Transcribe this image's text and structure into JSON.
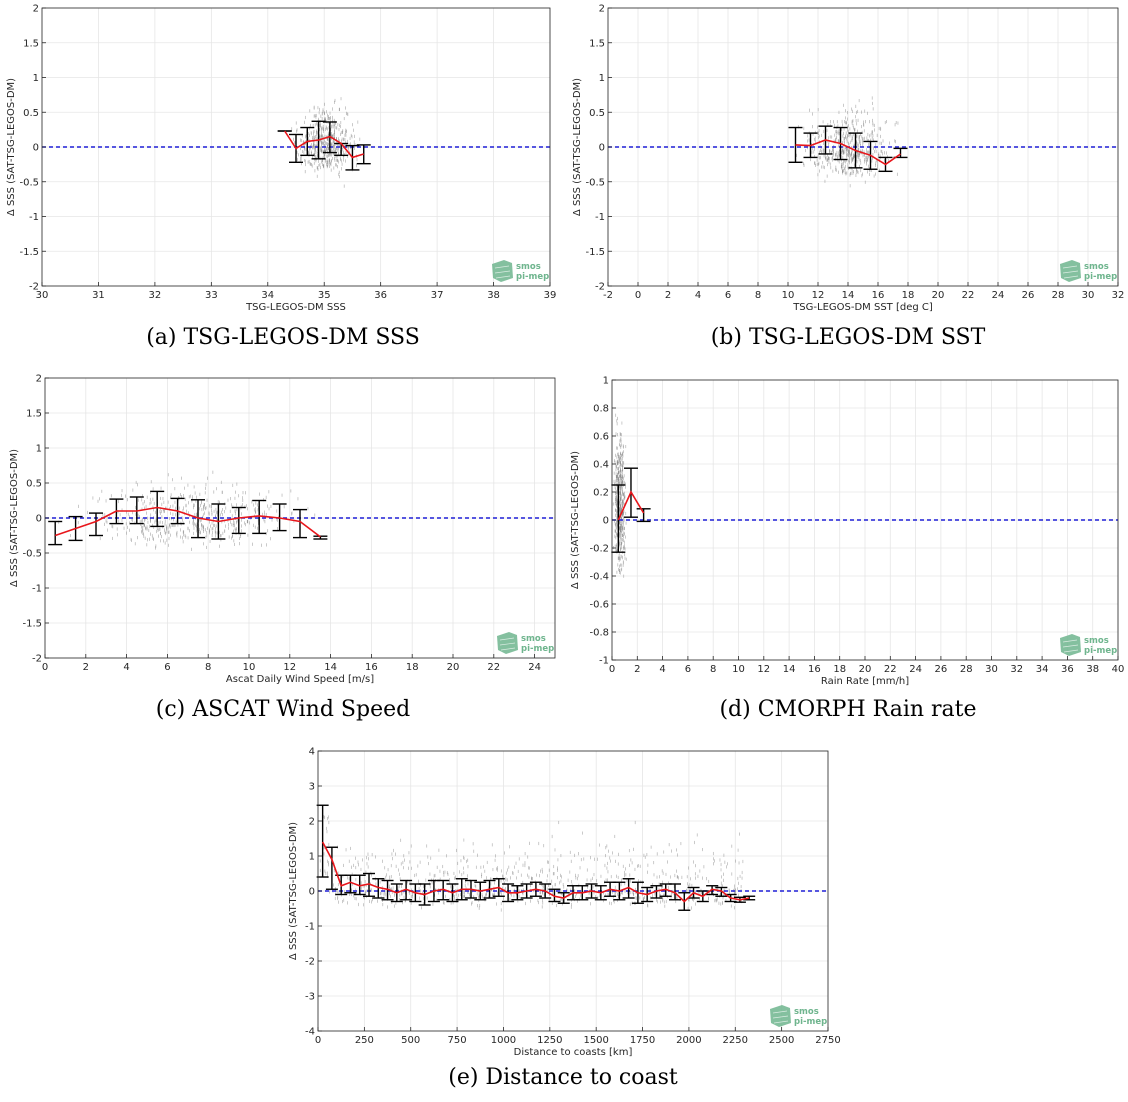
{
  "logo": {
    "line1": "smos",
    "line2": "pi-mep",
    "color": "#6fb58e"
  },
  "colors": {
    "mean_line": "#e8161b",
    "error_bar": "#000000",
    "zero_line": "#1f1fd6",
    "scatter": "#8a8a8a",
    "grid": "#e6e6e6"
  },
  "chart_data": [
    {
      "id": "a",
      "type": "scatter",
      "caption": "(a) TSG-LEGOS-DM SSS",
      "xlabel": "TSG-LEGOS-DM SSS",
      "ylabel": "Δ SSS (SAT-TSG-LEGOS-DM)",
      "xlim": [
        30,
        39
      ],
      "ylim": [
        -2,
        2
      ],
      "xticks": [
        30,
        31,
        32,
        33,
        34,
        35,
        36,
        37,
        38,
        39
      ],
      "yticks": [
        -2,
        -1.5,
        -1,
        -0.5,
        0,
        0.5,
        1,
        1.5,
        2
      ],
      "grid": true,
      "reference_line": 0,
      "scatter_cloud": {
        "x": [
          34.35,
          35.75
        ],
        "y": [
          -0.65,
          0.9
        ]
      },
      "mean": {
        "x": [
          34.3,
          34.5,
          34.7,
          34.9,
          35.1,
          35.3,
          35.5,
          35.7
        ],
        "y": [
          0.23,
          -0.02,
          0.08,
          0.1,
          0.15,
          0.05,
          -0.15,
          -0.1
        ]
      },
      "errorbars": [
        {
          "x": 34.3,
          "low": 0.23,
          "high": 0.23
        },
        {
          "x": 34.5,
          "low": -0.22,
          "high": 0.18
        },
        {
          "x": 34.7,
          "low": -0.12,
          "high": 0.28
        },
        {
          "x": 34.9,
          "low": -0.17,
          "high": 0.37
        },
        {
          "x": 35.1,
          "low": -0.08,
          "high": 0.36
        },
        {
          "x": 35.3,
          "low": -0.12,
          "high": 0.05
        },
        {
          "x": 35.5,
          "low": -0.33,
          "high": 0.02
        },
        {
          "x": 35.7,
          "low": -0.24,
          "high": 0.03
        }
      ]
    },
    {
      "id": "b",
      "type": "scatter",
      "caption": "(b) TSG-LEGOS-DM SST",
      "xlabel": "TSG-LEGOS-DM SST [deg C]",
      "ylabel": "Δ SSS (SAT-TSG-LEGOS-DM)",
      "xlim": [
        -2,
        32
      ],
      "ylim": [
        -2,
        2
      ],
      "xticks": [
        -2,
        0,
        2,
        4,
        6,
        8,
        10,
        12,
        14,
        16,
        18,
        20,
        22,
        24,
        26,
        28,
        30,
        32
      ],
      "yticks": [
        -2,
        -1.5,
        -1,
        -0.5,
        0,
        0.5,
        1,
        1.5,
        2
      ],
      "grid": true,
      "reference_line": 0,
      "scatter_cloud": {
        "x": [
          10.3,
          17.8
        ],
        "y": [
          -0.65,
          0.9
        ]
      },
      "mean": {
        "x": [
          10.5,
          11.5,
          12.5,
          13.5,
          14.5,
          15.5,
          16.5,
          17.5
        ],
        "y": [
          0.03,
          0.02,
          0.1,
          0.05,
          -0.05,
          -0.12,
          -0.25,
          -0.1
        ]
      },
      "errorbars": [
        {
          "x": 10.5,
          "low": -0.22,
          "high": 0.28
        },
        {
          "x": 11.5,
          "low": -0.15,
          "high": 0.2
        },
        {
          "x": 12.5,
          "low": -0.1,
          "high": 0.3
        },
        {
          "x": 13.5,
          "low": -0.18,
          "high": 0.28
        },
        {
          "x": 14.5,
          "low": -0.3,
          "high": 0.2
        },
        {
          "x": 15.5,
          "low": -0.32,
          "high": 0.08
        },
        {
          "x": 16.5,
          "low": -0.35,
          "high": -0.15
        },
        {
          "x": 17.5,
          "low": -0.15,
          "high": -0.02
        }
      ]
    },
    {
      "id": "c",
      "type": "scatter",
      "caption": "(c) ASCAT Wind Speed",
      "xlabel": "Ascat Daily Wind Speed [m/s]",
      "ylabel": "Δ SSS (SAT-TSG-LEGOS-DM)",
      "xlim": [
        0,
        25
      ],
      "ylim": [
        -2,
        2
      ],
      "xticks": [
        0,
        2,
        4,
        6,
        8,
        10,
        12,
        14,
        16,
        18,
        20,
        22,
        24
      ],
      "yticks": [
        -2,
        -1.5,
        -1,
        -0.5,
        0,
        0.5,
        1,
        1.5,
        2
      ],
      "grid": true,
      "reference_line": 0,
      "scatter_cloud": {
        "x": [
          0.3,
          13.7
        ],
        "y": [
          -0.6,
          0.9
        ]
      },
      "mean": {
        "x": [
          0.5,
          1.5,
          2.5,
          3.5,
          4.5,
          5.5,
          6.5,
          7.5,
          8.5,
          9.5,
          10.5,
          11.5,
          12.5,
          13.5
        ],
        "y": [
          -0.25,
          -0.15,
          -0.05,
          0.1,
          0.1,
          0.15,
          0.1,
          0.0,
          -0.05,
          0.0,
          0.03,
          0.0,
          -0.05,
          -0.27
        ]
      },
      "errorbars": [
        {
          "x": 0.5,
          "low": -0.38,
          "high": -0.05
        },
        {
          "x": 1.5,
          "low": -0.32,
          "high": 0.02
        },
        {
          "x": 2.5,
          "low": -0.25,
          "high": 0.07
        },
        {
          "x": 3.5,
          "low": -0.08,
          "high": 0.27
        },
        {
          "x": 4.5,
          "low": -0.08,
          "high": 0.3
        },
        {
          "x": 5.5,
          "low": -0.12,
          "high": 0.38
        },
        {
          "x": 6.5,
          "low": -0.08,
          "high": 0.28
        },
        {
          "x": 7.5,
          "low": -0.28,
          "high": 0.26
        },
        {
          "x": 8.5,
          "low": -0.3,
          "high": 0.2
        },
        {
          "x": 9.5,
          "low": -0.22,
          "high": 0.15
        },
        {
          "x": 10.5,
          "low": -0.22,
          "high": 0.25
        },
        {
          "x": 11.5,
          "low": -0.18,
          "high": 0.2
        },
        {
          "x": 12.5,
          "low": -0.28,
          "high": 0.12
        },
        {
          "x": 13.5,
          "low": -0.3,
          "high": -0.26
        }
      ]
    },
    {
      "id": "d",
      "type": "scatter",
      "caption": "(d) CMORPH Rain rate",
      "xlabel": "Rain Rate [mm/h]",
      "ylabel": "Δ SSS (SAT-TSG-LEGOS-DM)",
      "xlim": [
        0,
        40
      ],
      "ylim": [
        -1,
        1
      ],
      "xticks": [
        0,
        2,
        4,
        6,
        8,
        10,
        12,
        14,
        16,
        18,
        20,
        22,
        24,
        26,
        28,
        30,
        32,
        34,
        36,
        38,
        40
      ],
      "yticks": [
        -1,
        -0.8,
        -0.6,
        -0.4,
        -0.2,
        0,
        0.2,
        0.4,
        0.6,
        0.8,
        1
      ],
      "grid": true,
      "reference_line": 0,
      "scatter_cloud": {
        "x": [
          0.0,
          1.2
        ],
        "y": [
          -0.6,
          0.95
        ]
      },
      "mean": {
        "x": [
          0.5,
          1.5,
          2.5
        ],
        "y": [
          0.0,
          0.2,
          0.05
        ]
      },
      "errorbars": [
        {
          "x": 0.5,
          "low": -0.23,
          "high": 0.25
        },
        {
          "x": 1.5,
          "low": 0.02,
          "high": 0.37
        },
        {
          "x": 2.5,
          "low": -0.01,
          "high": 0.08
        }
      ]
    },
    {
      "id": "e",
      "type": "scatter",
      "caption": "(e) Distance to coast",
      "xlabel": "Distance to coasts [km]",
      "ylabel": "Δ SSS (SAT-TSG-LEGOS-DM)",
      "xlim": [
        0,
        2750
      ],
      "ylim": [
        -4,
        4
      ],
      "xticks": [
        0,
        250,
        500,
        750,
        1000,
        1250,
        1500,
        1750,
        2000,
        2250,
        2500,
        2750
      ],
      "yticks": [
        -4,
        -3,
        -2,
        -1,
        0,
        1,
        2,
        3,
        4
      ],
      "grid": true,
      "reference_line": 0,
      "scatter_cloud": {
        "x": [
          5,
          2300
        ],
        "y": [
          -0.7,
          2.2
        ]
      },
      "mean": {
        "x": [
          25,
          75,
          125,
          175,
          225,
          275,
          325,
          375,
          425,
          475,
          525,
          575,
          625,
          675,
          725,
          775,
          825,
          875,
          925,
          975,
          1025,
          1075,
          1125,
          1175,
          1225,
          1275,
          1325,
          1375,
          1425,
          1475,
          1525,
          1575,
          1625,
          1675,
          1725,
          1775,
          1825,
          1875,
          1925,
          1975,
          2025,
          2075,
          2125,
          2175,
          2225,
          2275,
          2325
        ],
        "y": [
          1.4,
          0.9,
          0.15,
          0.25,
          0.15,
          0.2,
          0.1,
          0.05,
          -0.05,
          0.05,
          -0.05,
          -0.1,
          0.0,
          0.05,
          -0.05,
          0.05,
          0.05,
          0.0,
          0.05,
          0.1,
          -0.05,
          -0.05,
          0.0,
          0.05,
          0.0,
          -0.15,
          -0.2,
          -0.05,
          -0.05,
          0.0,
          -0.05,
          0.05,
          0.0,
          0.1,
          -0.05,
          -0.1,
          0.0,
          0.05,
          -0.05,
          -0.3,
          -0.05,
          -0.15,
          0.05,
          0.0,
          -0.2,
          -0.25,
          -0.2
        ]
      },
      "errorbars": [
        {
          "x": 25,
          "low": 0.4,
          "high": 2.45
        },
        {
          "x": 75,
          "low": 0.05,
          "high": 1.25
        },
        {
          "x": 125,
          "low": -0.1,
          "high": 0.45
        },
        {
          "x": 175,
          "low": -0.05,
          "high": 0.45
        },
        {
          "x": 225,
          "low": -0.1,
          "high": 0.45
        },
        {
          "x": 275,
          "low": -0.15,
          "high": 0.5
        },
        {
          "x": 325,
          "low": -0.2,
          "high": 0.35
        },
        {
          "x": 375,
          "low": -0.25,
          "high": 0.3
        },
        {
          "x": 425,
          "low": -0.3,
          "high": 0.2
        },
        {
          "x": 475,
          "low": -0.25,
          "high": 0.3
        },
        {
          "x": 525,
          "low": -0.3,
          "high": 0.2
        },
        {
          "x": 575,
          "low": -0.4,
          "high": 0.2
        },
        {
          "x": 625,
          "low": -0.3,
          "high": 0.3
        },
        {
          "x": 675,
          "low": -0.25,
          "high": 0.3
        },
        {
          "x": 725,
          "low": -0.3,
          "high": 0.2
        },
        {
          "x": 775,
          "low": -0.25,
          "high": 0.35
        },
        {
          "x": 825,
          "low": -0.2,
          "high": 0.3
        },
        {
          "x": 875,
          "low": -0.25,
          "high": 0.25
        },
        {
          "x": 925,
          "low": -0.2,
          "high": 0.3
        },
        {
          "x": 975,
          "low": -0.15,
          "high": 0.35
        },
        {
          "x": 1025,
          "low": -0.3,
          "high": 0.2
        },
        {
          "x": 1075,
          "low": -0.25,
          "high": 0.15
        },
        {
          "x": 1125,
          "low": -0.2,
          "high": 0.2
        },
        {
          "x": 1175,
          "low": -0.15,
          "high": 0.25
        },
        {
          "x": 1225,
          "low": -0.2,
          "high": 0.2
        },
        {
          "x": 1275,
          "low": -0.3,
          "high": 0.05
        },
        {
          "x": 1325,
          "low": -0.35,
          "high": -0.05
        },
        {
          "x": 1375,
          "low": -0.25,
          "high": 0.15
        },
        {
          "x": 1425,
          "low": -0.25,
          "high": 0.15
        },
        {
          "x": 1475,
          "low": -0.2,
          "high": 0.2
        },
        {
          "x": 1525,
          "low": -0.25,
          "high": 0.15
        },
        {
          "x": 1575,
          "low": -0.15,
          "high": 0.25
        },
        {
          "x": 1625,
          "low": -0.25,
          "high": 0.25
        },
        {
          "x": 1675,
          "low": -0.2,
          "high": 0.35
        },
        {
          "x": 1725,
          "low": -0.35,
          "high": 0.25
        },
        {
          "x": 1775,
          "low": -0.3,
          "high": 0.1
        },
        {
          "x": 1825,
          "low": -0.2,
          "high": 0.15
        },
        {
          "x": 1875,
          "low": -0.15,
          "high": 0.2
        },
        {
          "x": 1925,
          "low": -0.25,
          "high": 0.2
        },
        {
          "x": 1975,
          "low": -0.55,
          "high": -0.05
        },
        {
          "x": 2025,
          "low": -0.2,
          "high": 0.1
        },
        {
          "x": 2075,
          "low": -0.3,
          "high": 0.0
        },
        {
          "x": 2125,
          "low": -0.1,
          "high": 0.15
        },
        {
          "x": 2175,
          "low": -0.15,
          "high": 0.1
        },
        {
          "x": 2225,
          "low": -0.3,
          "high": -0.1
        },
        {
          "x": 2275,
          "low": -0.32,
          "high": -0.18
        },
        {
          "x": 2325,
          "low": -0.25,
          "high": -0.15
        }
      ]
    }
  ]
}
